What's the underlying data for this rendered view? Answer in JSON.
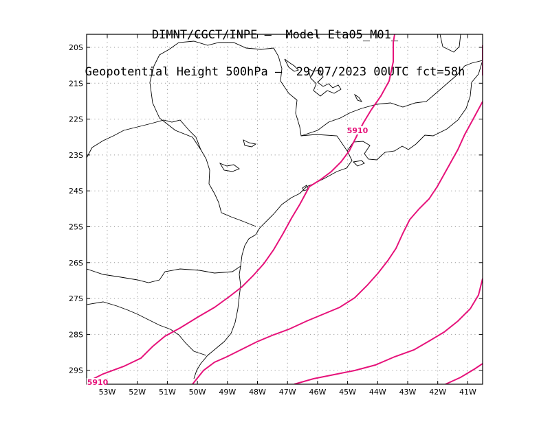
{
  "title": {
    "line1": "DIMNT/CGCT/INPE –  Model Eta05_M01_",
    "line2": "Geopotential Height 500hPa –  29/07/2023 00UTC fct=58h"
  },
  "colors": {
    "contour": "#e6127a",
    "coastline": "#000000",
    "grid": "#9a9a9a"
  },
  "axes": {
    "lon_labels": [
      "53W",
      "52W",
      "51W",
      "50W",
      "49W",
      "48W",
      "47W",
      "46W",
      "45W",
      "44W",
      "43W",
      "42W",
      "41W"
    ],
    "lat_labels": [
      "20S",
      "21S",
      "22S",
      "23S",
      "24S",
      "25S",
      "26S",
      "27S",
      "28S",
      "29S"
    ]
  },
  "contours": {
    "line_value": "5910",
    "labels": [
      "5910",
      "5910"
    ]
  }
}
